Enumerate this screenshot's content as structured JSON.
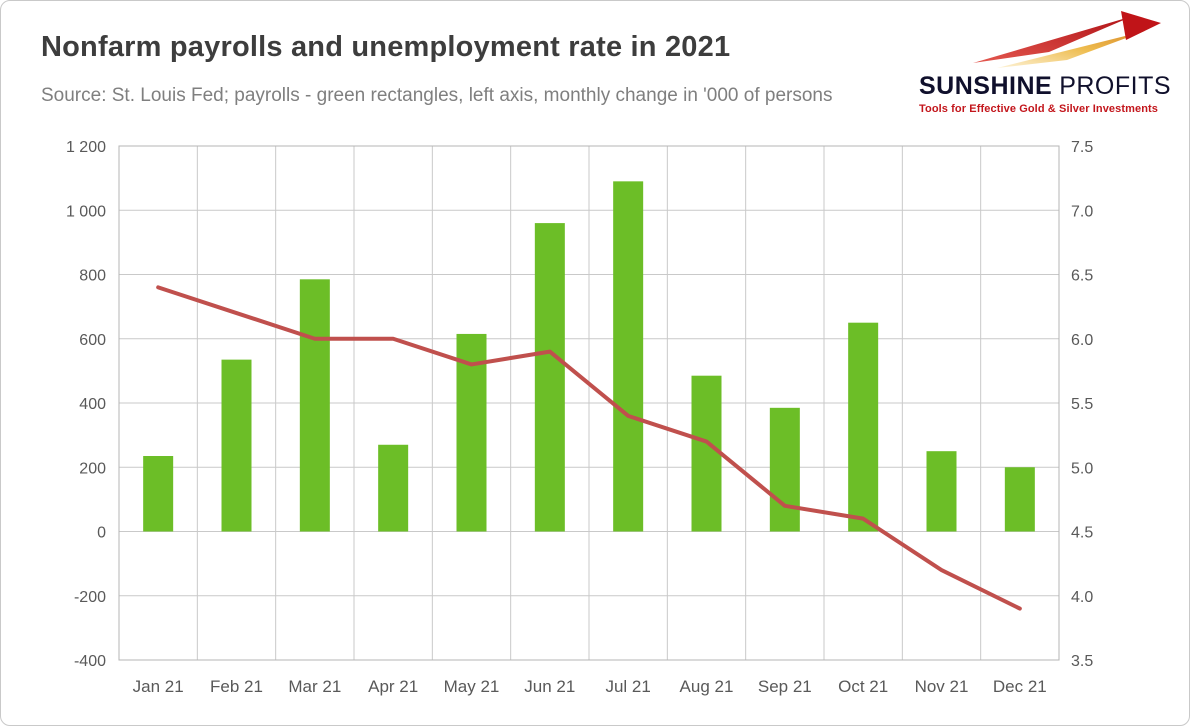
{
  "header": {
    "title": "Nonfarm payrolls and unemployment rate in 2021",
    "subtitle": "Source: St. Louis Fed; payrolls - green rectangles, left axis, monthly change in '000 of persons"
  },
  "logo": {
    "brand_bold": "SUNSHINE",
    "brand_regular": "PROFITS",
    "tagline": "Tools for Effective Gold & Silver Investments",
    "brand_color": "#10102c",
    "tagline_color": "#c3161c"
  },
  "chart_data": {
    "type": "combo",
    "title": "Nonfarm payrolls and unemployment rate in 2021",
    "categories": [
      "Jan 21",
      "Feb 21",
      "Mar 21",
      "Apr 21",
      "May 21",
      "Jun 21",
      "Jul 21",
      "Aug 21",
      "Sep 21",
      "Oct 21",
      "Nov 21",
      "Dec 21"
    ],
    "series": [
      {
        "name": "Nonfarm payrolls (monthly change, '000 of persons)",
        "type": "bar",
        "axis": "left",
        "color": "#6cbe27",
        "values": [
          235,
          535,
          785,
          270,
          615,
          960,
          1090,
          485,
          385,
          650,
          250,
          200
        ]
      },
      {
        "name": "Unemployment rate (%)",
        "type": "line",
        "axis": "right",
        "color": "#c0504d",
        "values": [
          6.4,
          6.2,
          6.0,
          6.0,
          5.8,
          5.9,
          5.4,
          5.2,
          4.7,
          4.6,
          4.2,
          3.9
        ]
      }
    ],
    "left_axis": {
      "min": -400,
      "max": 1200,
      "step": 200,
      "tick_labels": [
        "1 200",
        "1 000",
        "800",
        "600",
        "400",
        "200",
        "0",
        "-200",
        "-400"
      ]
    },
    "right_axis": {
      "min": 3.5,
      "max": 7.5,
      "step": 0.5,
      "tick_labels": [
        "7.5",
        "7.0",
        "6.5",
        "6.0",
        "5.5",
        "5.0",
        "4.5",
        "4.0",
        "3.5"
      ]
    },
    "grid": true,
    "legend": "none",
    "gridline_color": "#c9c9c9"
  }
}
